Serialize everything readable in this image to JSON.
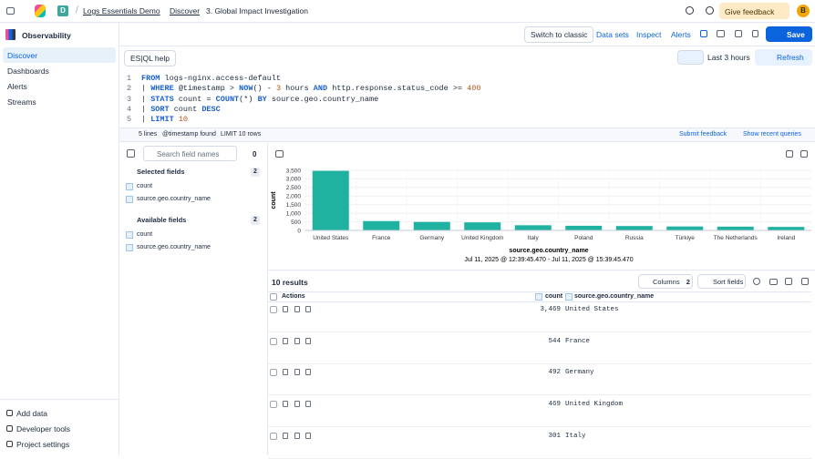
{
  "header": {
    "space_initial": "D",
    "breadcrumbs": [
      "Logs Essentials Demo",
      "Discover",
      "3. Global Impact Investigation"
    ],
    "feedback": "Give feedback",
    "avatar": "B"
  },
  "sidebar": {
    "title": "Observability",
    "nav": [
      "Discover",
      "Dashboards",
      "Alerts",
      "Streams"
    ],
    "footer": [
      "Add data",
      "Developer tools",
      "Project settings"
    ]
  },
  "toolbar": {
    "buttons": [
      "Switch to classic",
      "Data sets",
      "Inspect",
      "Alerts"
    ],
    "save": "Save"
  },
  "query": {
    "help": "ES|QL help",
    "time_range": "Last 3 hours",
    "refresh": "Refresh",
    "line_numbers": [
      1,
      2,
      3,
      4,
      5
    ],
    "lines": [
      "FROM logs-nginx.access-default",
      "| WHERE @timestamp > NOW() - 3 hours AND http.response.status_code >= 400",
      "| STATS count = COUNT(*) BY source.geo.country_name",
      "| SORT count DESC",
      "| LIMIT 10"
    ],
    "status": [
      "5 lines",
      "@timestamp found",
      "LIMIT 10 rows"
    ],
    "submit_feedback": "Submit feedback",
    "recent": "Show recent queries"
  },
  "fields": {
    "search_placeholder": "Search field names",
    "filter_count": "0",
    "selected": {
      "title": "Selected fields",
      "count": "2",
      "items": [
        "count",
        "source.geo.country_name"
      ]
    },
    "available": {
      "title": "Available fields",
      "count": "2",
      "items": [
        "count",
        "source.geo.country_name"
      ]
    }
  },
  "chart_data": {
    "type": "bar",
    "y_label": "count",
    "x_label": "source.geo.country_name",
    "subtitle": "Jul 11, 2025 @ 12:39:45.470 - Jul 11, 2025 @ 15:39:45.470",
    "categories": [
      "United States",
      "France",
      "Germany",
      "United Kingdom",
      "Italy",
      "Poland",
      "Russia",
      "Türkiye",
      "The Netherlands",
      "Ireland"
    ],
    "values": [
      3469,
      544,
      492,
      469,
      301,
      270,
      255,
      230,
      220,
      205
    ],
    "color": "#20b2a1",
    "ylim": [
      0,
      3500
    ],
    "yticks": [
      0,
      500,
      {
        "value": 1000,
        "label": "1,000"
      },
      {
        "value": 1500,
        "label": "1,500"
      },
      {
        "value": 2000,
        "label": "2,000"
      },
      {
        "value": 2500,
        "label": "2,500"
      },
      {
        "value": 3000,
        "label": "3,000"
      },
      {
        "value": 3500,
        "label": "3,500"
      }
    ],
    "grid": true
  },
  "results": {
    "title": "10 results",
    "columns_label": "Columns",
    "columns_count": "2",
    "sort": "Sort fields",
    "headers": [
      "Actions",
      "count",
      "source.geo.country_name"
    ],
    "rows": [
      [
        "3,469",
        "United States"
      ],
      [
        "544",
        "France"
      ],
      [
        "492",
        "Germany"
      ],
      [
        "469",
        "United Kingdom"
      ],
      [
        "301",
        "Italy"
      ]
    ]
  }
}
